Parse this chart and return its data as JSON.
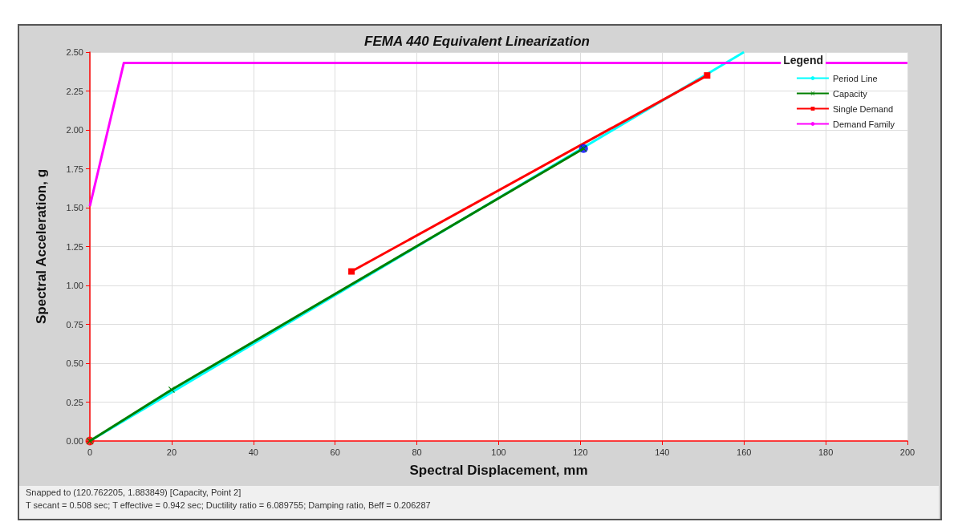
{
  "chart_data": {
    "type": "line",
    "title": "FEMA 440 Equivalent Linearization",
    "xlabel": "Spectral Displacement, mm",
    "ylabel": "Spectral Acceleration, g",
    "legend_title": "Legend",
    "xlim": [
      0,
      200
    ],
    "xticks": [
      0,
      20,
      40,
      60,
      80,
      100,
      120,
      140,
      160,
      180,
      200
    ],
    "ylim": [
      0,
      2.5
    ],
    "yticks": [
      {
        "value": 0,
        "label": "0.00"
      },
      {
        "value": 0.25,
        "label": "0.25"
      },
      {
        "value": 0.5,
        "label": "0.50"
      },
      {
        "value": 0.75,
        "label": "0.75"
      },
      {
        "value": 1,
        "label": "1.00"
      },
      {
        "value": 1.25,
        "label": "1.25"
      },
      {
        "value": 1.5,
        "label": "1.50"
      },
      {
        "value": 1.75,
        "label": "1.75"
      },
      {
        "value": 2,
        "label": "2.00"
      },
      {
        "value": 2.25,
        "label": "2.25"
      },
      {
        "value": 2.5,
        "label": "2.50"
      }
    ],
    "grid": true,
    "legend": "top right",
    "line_style": "solid",
    "series": [
      {
        "name": "Period Line",
        "color": "#00ffff",
        "marker": "none",
        "x": [
          0,
          160
        ],
        "values": [
          0,
          2.5
        ]
      },
      {
        "name": "Capacity",
        "color": "#008000",
        "marker": "cross",
        "x": [
          0,
          20,
          120.76
        ],
        "values": [
          0,
          0.33,
          1.88
        ]
      },
      {
        "name": "Single Demand",
        "color": "#ff0000",
        "marker": "square",
        "x": [
          64,
          151
        ],
        "values": [
          1.09,
          2.35
        ]
      },
      {
        "name": "Demand Family",
        "color": "#ff00ff",
        "marker": "none",
        "x": [
          0,
          8.3,
          200
        ],
        "values": [
          1.51,
          2.43,
          2.43
        ]
      },
      {
        "type": "scatter",
        "color": "#0000ff",
        "marker": "circle",
        "x": [
          120.76
        ],
        "values": [
          1.88
        ]
      },
      {
        "type": "scatter",
        "color": "#ff0000",
        "marker": "circle",
        "x": [
          0
        ],
        "values": [
          0
        ]
      }
    ],
    "annotations": [
      "Snapped to (120.762205, 1.883849)   [Capacity, Point 2]",
      "T secant = 0.508 sec;  T effective = 0.942 sec;  Ductility ratio = 6.089755;  Damping ratio, Beff = 0.206287"
    ]
  }
}
